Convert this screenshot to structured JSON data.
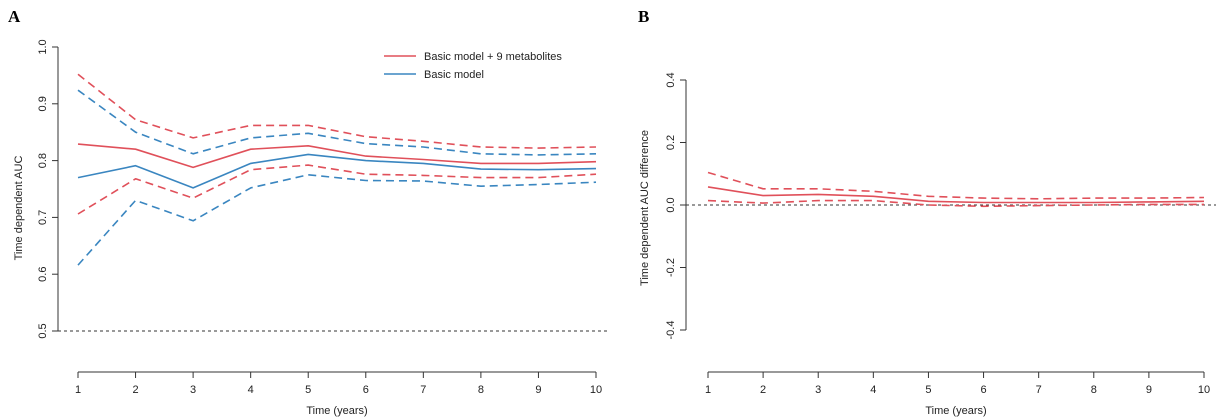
{
  "colors": {
    "red": "#e0505a",
    "blue": "#3a86c0",
    "axis": "#333333"
  },
  "chart_data": [
    {
      "panel": "A",
      "type": "line",
      "xlabel": "Time (years)",
      "ylabel": "Time dependent AUC",
      "xlim": [
        1,
        10
      ],
      "ylim": [
        0.5,
        1.0
      ],
      "x_ticks": [
        1,
        2,
        3,
        4,
        5,
        6,
        7,
        8,
        9,
        10
      ],
      "y_ticks": [
        0.5,
        0.6,
        0.7,
        0.8,
        0.9,
        1.0
      ],
      "y_tick_labels": [
        "0.5",
        "0.6",
        "0.7",
        "0.8",
        "0.9",
        "1.0"
      ],
      "reference_line": 0.5,
      "legend_position": "top-right",
      "x": [
        1,
        2,
        3,
        4,
        5,
        6,
        7,
        8,
        9,
        10
      ],
      "series": [
        {
          "name": "Basic model + 9 metabolites",
          "color": "red",
          "style": "solid",
          "values": [
            0.829,
            0.82,
            0.788,
            0.82,
            0.826,
            0.808,
            0.802,
            0.795,
            0.795,
            0.798
          ]
        },
        {
          "color": "red",
          "style": "dashed",
          "values": [
            0.952,
            0.872,
            0.84,
            0.862,
            0.862,
            0.842,
            0.834,
            0.824,
            0.822,
            0.824
          ]
        },
        {
          "color": "red",
          "style": "dashed",
          "values": [
            0.706,
            0.768,
            0.734,
            0.784,
            0.792,
            0.776,
            0.774,
            0.77,
            0.77,
            0.776
          ]
        },
        {
          "name": "Basic model",
          "color": "blue",
          "style": "solid",
          "values": [
            0.77,
            0.791,
            0.752,
            0.795,
            0.811,
            0.8,
            0.795,
            0.785,
            0.784,
            0.786
          ]
        },
        {
          "color": "blue",
          "style": "dashed",
          "values": [
            0.924,
            0.85,
            0.812,
            0.84,
            0.848,
            0.83,
            0.824,
            0.812,
            0.81,
            0.812
          ]
        },
        {
          "color": "blue",
          "style": "dashed",
          "values": [
            0.616,
            0.73,
            0.694,
            0.752,
            0.775,
            0.765,
            0.764,
            0.755,
            0.758,
            0.762
          ]
        }
      ]
    },
    {
      "panel": "B",
      "type": "line",
      "xlabel": "Time (years)",
      "ylabel": "Time dependent AUC difference",
      "xlim": [
        1,
        10
      ],
      "ylim": [
        -0.5,
        0.5
      ],
      "x_ticks": [
        1,
        2,
        3,
        4,
        5,
        6,
        7,
        8,
        9,
        10
      ],
      "y_ticks": [
        -0.4,
        -0.2,
        0.0,
        0.2,
        0.4
      ],
      "y_tick_labels": [
        "-0.4",
        "-0.2",
        "0.0",
        "0.2",
        "0.4"
      ],
      "reference_line": 0.0,
      "x": [
        1,
        2,
        3,
        4,
        5,
        6,
        7,
        8,
        9,
        10
      ],
      "series": [
        {
          "color": "red",
          "style": "solid",
          "values": [
            0.058,
            0.03,
            0.034,
            0.028,
            0.012,
            0.008,
            0.008,
            0.008,
            0.01,
            0.012
          ]
        },
        {
          "color": "red",
          "style": "dashed",
          "values": [
            0.104,
            0.052,
            0.052,
            0.044,
            0.028,
            0.022,
            0.02,
            0.022,
            0.022,
            0.024
          ]
        },
        {
          "color": "red",
          "style": "dashed",
          "values": [
            0.014,
            0.006,
            0.014,
            0.014,
            0.0,
            -0.004,
            -0.002,
            0.0,
            0.002,
            0.002
          ]
        }
      ]
    }
  ]
}
